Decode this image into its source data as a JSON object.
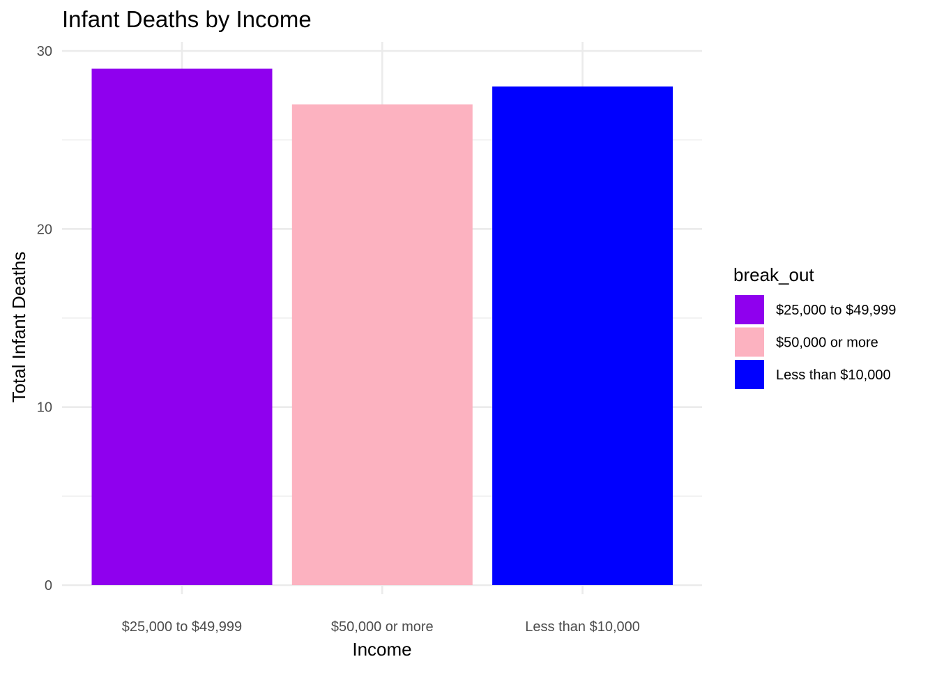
{
  "chart_data": {
    "type": "bar",
    "title": "Infant Deaths by Income",
    "xlabel": "Income",
    "ylabel": "Total Infant Deaths",
    "categories": [
      "$25,000 to $49,999",
      "$50,000 or more",
      "Less than $10,000"
    ],
    "values": [
      29,
      27,
      28
    ],
    "colors": [
      "#8f00ee",
      "#fcb2c0",
      "#0000ff"
    ],
    "ylim": [
      0,
      30
    ],
    "yticks": [
      0,
      10,
      20,
      30
    ],
    "grid": true,
    "legend": {
      "title": "break_out",
      "placement": "right",
      "entries": [
        "$25,000 to $49,999",
        "$50,000 or more",
        "Less than $10,000"
      ]
    }
  }
}
